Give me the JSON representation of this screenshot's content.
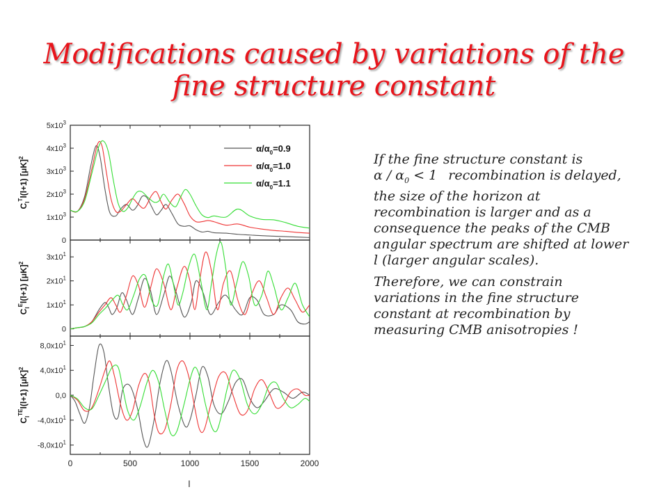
{
  "slide": {
    "title_line1": "Modifications caused by variations of the",
    "title_line2": "fine structure constant",
    "text": {
      "p1_start": "If the fine structure constant is",
      "p1_math": "α / α",
      "p1_math_sub": "0",
      "p1_math_rel": " < 1",
      "p1_rest": "recombination is delayed, the size of the horizon at recombination is larger and as a consequence the peaks of the CMB angular spectrum are shifted at lower l (larger angular scales).",
      "p2": "Therefore, we can constrain variations in the fine structure constant at recombination by measuring CMB anisotropies !"
    }
  },
  "chart_data": {
    "type": "line",
    "xlabel": "l",
    "xlim": [
      0,
      2000
    ],
    "x_ticks": [
      "0",
      "500",
      "1000",
      "1500",
      "2000"
    ],
    "legend": {
      "placement": "top-right",
      "entries": [
        {
          "label": "α/α",
          "sub": "0",
          "value": "=0.9",
          "color": "#555555"
        },
        {
          "label": "α/α",
          "sub": "0",
          "value": "=1.0",
          "color": "#ee3333"
        },
        {
          "label": "α/α",
          "sub": "0",
          "value": "=1.1",
          "color": "#33dd33"
        }
      ]
    },
    "panels": [
      {
        "ylabel_main": "C",
        "ylabel_sub": "l",
        "ylabel_sup": "T",
        "ylabel_rest": "l(l+1)  [μK]",
        "ylabel_sq": "2",
        "ylim": [
          0,
          5000
        ],
        "y_ticks": [
          {
            "value": 0,
            "label": "0"
          },
          {
            "value": 1000,
            "label": "1x10",
            "exp": "3"
          },
          {
            "value": 2000,
            "label": "2x10",
            "exp": "3"
          },
          {
            "value": 3000,
            "label": "3x10",
            "exp": "3"
          },
          {
            "value": 4000,
            "label": "4x10",
            "exp": "3"
          },
          {
            "value": 5000,
            "label": "5x10",
            "exp": "3"
          }
        ],
        "series": [
          {
            "color": "#555555",
            "x": [
              0,
              60,
              120,
              170,
              215,
              250,
              290,
              330,
              380,
              420,
              470,
              520,
              560,
              600,
              640,
              680,
              720,
              760,
              800,
              850,
              900,
              950,
              1000,
              1050,
              1100,
              1150,
              1200,
              1300,
              1400,
              1500,
              1600,
              1700,
              1800,
              1900,
              2000
            ],
            "y": [
              1300,
              1250,
              1900,
              3200,
              4100,
              3600,
              2200,
              1200,
              1050,
              1350,
              1550,
              1300,
              1500,
              1900,
              1850,
              1450,
              1100,
              1300,
              1550,
              1150,
              700,
              600,
              620,
              450,
              350,
              380,
              320,
              300,
              250,
              220,
              190,
              170,
              150,
              130,
              110
            ]
          },
          {
            "color": "#ee3333",
            "x": [
              0,
              60,
              120,
              180,
              230,
              265,
              300,
              340,
              380,
              420,
              470,
              520,
              570,
              620,
              680,
              720,
              760,
              800,
              850,
              900,
              950,
              1000,
              1050,
              1100,
              1150,
              1200,
              1300,
              1400,
              1500,
              1600,
              1700,
              1800,
              1900,
              2000
            ],
            "y": [
              1300,
              1250,
              1800,
              3100,
              4200,
              4100,
              3000,
              1800,
              1250,
              1250,
              1550,
              1800,
              1550,
              1400,
              1950,
              2100,
              1650,
              1350,
              1750,
              2000,
              1600,
              1050,
              800,
              800,
              850,
              800,
              650,
              700,
              560,
              480,
              420,
              380,
              330,
              300
            ]
          },
          {
            "color": "#33dd33",
            "x": [
              0,
              60,
              120,
              180,
              240,
              280,
              320,
              360,
              400,
              440,
              480,
              520,
              560,
              600,
              650,
              700,
              740,
              780,
              830,
              880,
              920,
              960,
              1000,
              1050,
              1100,
              1150,
              1200,
              1300,
              1400,
              1500,
              1600,
              1700,
              1800,
              1900,
              2000
            ],
            "y": [
              1300,
              1250,
              1700,
              2900,
              4100,
              4300,
              3800,
              2600,
              1600,
              1250,
              1400,
              1800,
              2100,
              2100,
              1850,
              1650,
              1700,
              2000,
              1650,
              1450,
              1850,
              2200,
              2000,
              1500,
              1100,
              980,
              1050,
              1000,
              1350,
              1050,
              900,
              880,
              760,
              600,
              520
            ]
          }
        ]
      },
      {
        "ylabel_main": "C",
        "ylabel_sub": "l",
        "ylabel_sup": "E",
        "ylabel_rest": "l(l+1)  [μK]",
        "ylabel_sq": "2",
        "ylim": [
          -3,
          37
        ],
        "y_ticks": [
          {
            "value": 0,
            "label": "0"
          },
          {
            "value": 10,
            "label": "1x10",
            "exp": "1"
          },
          {
            "value": 20,
            "label": "2x10",
            "exp": "1"
          },
          {
            "value": 30,
            "label": "3x10",
            "exp": "1"
          }
        ],
        "series": [
          {
            "color": "#555555",
            "x": [
              0,
              60,
              120,
              180,
              240,
              290,
              320,
              350,
              390,
              430,
              470,
              520,
              570,
              620,
              670,
              720,
              780,
              830,
              880,
              950,
              1010,
              1050,
              1110,
              1170,
              1240,
              1300,
              1380,
              1440,
              1500,
              1560,
              1620,
              1700,
              1760,
              1840,
              1900,
              1960,
              2000
            ],
            "y": [
              0,
              0.5,
              1,
              3,
              8,
              11,
              9,
              6,
              9,
              15,
              12,
              6,
              13,
              21,
              16,
              6,
              14,
              22,
              16,
              5,
              11,
              20,
              15,
              6,
              11,
              14,
              8,
              6,
              13,
              12,
              6,
              6,
              10,
              8,
              3,
              2,
              3
            ]
          },
          {
            "color": "#ee3333",
            "x": [
              0,
              60,
              120,
              180,
              240,
              290,
              340,
              380,
              420,
              470,
              520,
              570,
              620,
              670,
              720,
              780,
              840,
              890,
              950,
              1000,
              1040,
              1080,
              1130,
              1180,
              1230,
              1280,
              1340,
              1400,
              1460,
              1520,
              1580,
              1640,
              1700,
              1760,
              1820,
              1880,
              1940,
              2000
            ],
            "y": [
              0,
              0.5,
              1,
              3,
              7,
              10,
              13,
              10,
              7,
              14,
              22,
              18,
              9,
              17,
              25,
              19,
              8,
              17,
              26,
              20,
              8,
              20,
              32,
              24,
              8,
              19,
              24,
              12,
              6,
              15,
              20,
              13,
              6,
              13,
              17,
              12,
              7,
              10
            ]
          },
          {
            "color": "#33dd33",
            "x": [
              0,
              60,
              120,
              180,
              240,
              300,
              350,
              400,
              440,
              480,
              530,
              580,
              630,
              680,
              730,
              780,
              820,
              860,
              900,
              940,
              990,
              1040,
              1090,
              1140,
              1180,
              1220,
              1260,
              1300,
              1340,
              1390,
              1440,
              1490,
              1540,
              1600,
              1650,
              1700,
              1760,
              1820,
              1880,
              1940,
              2000
            ],
            "y": [
              0,
              0.5,
              1,
              2.5,
              6,
              9,
              12,
              14,
              10,
              8,
              14,
              21,
              22,
              12,
              10,
              22,
              27,
              19,
              10,
              15,
              26,
              31,
              20,
              8,
              19,
              31,
              36,
              25,
              10,
              19,
              28,
              22,
              10,
              14,
              24,
              18,
              8,
              13,
              19,
              10,
              5
            ]
          }
        ]
      },
      {
        "ylabel_main": "C",
        "ylabel_sub": "l",
        "ylabel_sup": "TE",
        "ylabel_rest": "l(l+1) [μK]",
        "ylabel_sq": "2",
        "ylim": [
          -95,
          95
        ],
        "y_ticks": [
          {
            "value": -80,
            "label": "-8,0x10",
            "exp": "1"
          },
          {
            "value": -40,
            "label": "-4,0x10",
            "exp": "1"
          },
          {
            "value": 0,
            "label": "0,0"
          },
          {
            "value": 40,
            "label": "4,0x10",
            "exp": "1"
          },
          {
            "value": 80,
            "label": "8,0x10",
            "exp": "1"
          }
        ],
        "series": [
          {
            "color": "#555555",
            "x": [
              0,
              40,
              80,
              120,
              160,
              200,
              240,
              280,
              320,
              360,
              400,
              440,
              500,
              560,
              610,
              650,
              700,
              750,
              800,
              840,
              900,
              960,
              1000,
              1050,
              1100,
              1150,
              1200,
              1260,
              1320,
              1380,
              1440,
              1500,
              1560,
              1620,
              1700,
              1780,
              1860,
              1940,
              2000
            ],
            "y": [
              0,
              -10,
              -30,
              -45,
              -20,
              35,
              80,
              70,
              15,
              -30,
              -35,
              10,
              15,
              -20,
              -70,
              -82,
              -40,
              20,
              55,
              40,
              -15,
              -50,
              -40,
              0,
              45,
              30,
              -15,
              -30,
              -10,
              20,
              25,
              -5,
              -20,
              -10,
              10,
              5,
              -5,
              5,
              0
            ]
          },
          {
            "color": "#ee3333",
            "x": [
              0,
              60,
              120,
              180,
              240,
              290,
              330,
              370,
              420,
              470,
              520,
              570,
              620,
              660,
              700,
              740,
              790,
              840,
              890,
              940,
              990,
              1040,
              1080,
              1120,
              1180,
              1240,
              1300,
              1360,
              1420,
              1480,
              1540,
              1600,
              1660,
              1720,
              1780,
              1840,
              1900,
              1960,
              2000
            ],
            "y": [
              0,
              -8,
              -25,
              -20,
              10,
              40,
              55,
              30,
              -15,
              -40,
              -25,
              15,
              35,
              20,
              -30,
              -60,
              -55,
              -15,
              40,
              55,
              30,
              -20,
              -55,
              -55,
              -10,
              30,
              35,
              0,
              -30,
              -25,
              10,
              25,
              5,
              -20,
              -15,
              5,
              10,
              0,
              0
            ]
          },
          {
            "color": "#33dd33",
            "x": [
              0,
              60,
              120,
              180,
              240,
              300,
              350,
              400,
              440,
              480,
              530,
              580,
              640,
              690,
              740,
              790,
              840,
              890,
              950,
              1000,
              1040,
              1080,
              1130,
              1180,
              1220,
              1260,
              1310,
              1360,
              1420,
              1480,
              1540,
              1600,
              1660,
              1720,
              1780,
              1840,
              1900,
              1960,
              2000
            ],
            "y": [
              0,
              -6,
              -20,
              -22,
              0,
              25,
              45,
              45,
              10,
              -25,
              -40,
              -20,
              20,
              40,
              20,
              -25,
              -62,
              -58,
              -15,
              25,
              45,
              30,
              -15,
              -50,
              -58,
              -35,
              10,
              40,
              25,
              -15,
              -30,
              -15,
              15,
              20,
              -5,
              -20,
              -15,
              -5,
              -10
            ]
          }
        ]
      }
    ]
  }
}
